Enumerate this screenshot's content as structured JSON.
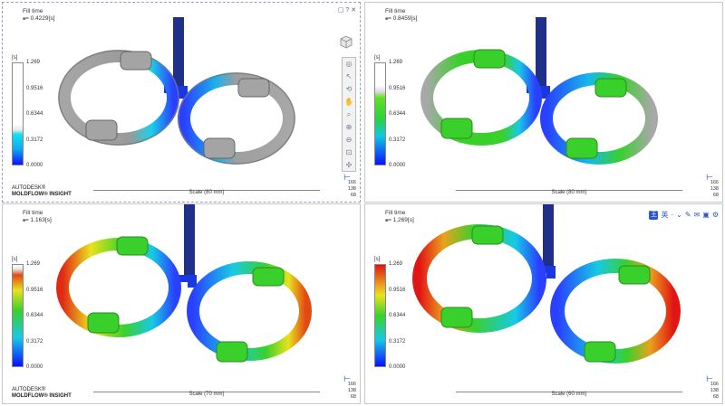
{
  "panels": [
    {
      "title": "Fill time",
      "value": "= 0.4229[s]",
      "unit": "[s]",
      "scale": "Scale (80 mm)"
    },
    {
      "title": "Fill time",
      "value": "= 0.8459[s]",
      "unit": "[s]",
      "scale": "Scale (80 mm)"
    },
    {
      "title": "Fill time",
      "value": "= 1.163[s]",
      "unit": "[s]",
      "scale": "Scale (70 mm)"
    },
    {
      "title": "Fill time",
      "value": "= 1.269[s]",
      "unit": "[s]",
      "scale": "Scale (60 mm)"
    }
  ],
  "legend": [
    "1.269",
    "0.9516",
    "0.6344",
    "0.3172",
    "0.0000"
  ],
  "brand": {
    "line1": "AUTODESK®",
    "line2": "MOLDFLOW® INSIGHT"
  },
  "triad": {
    "a": "166",
    "b": "138",
    "c": "68"
  },
  "toolbar_icons": [
    "window-icon",
    "question-icon",
    "close-icon"
  ],
  "vertical_tools": [
    "rotate-icon",
    "select-icon",
    "rotate-3d-icon",
    "pan-icon",
    "zoom-icon",
    "zoom-in-icon",
    "zoom-out-icon",
    "fit-icon",
    "move-icon"
  ],
  "translate_toolbar": {
    "zh": "王",
    "items": [
      "英",
      "·",
      "⌄",
      "✎",
      "✉",
      "▣",
      "⚙"
    ]
  },
  "colors": {
    "gray": "#9e9e9e",
    "blue": "#1a3aff",
    "cyan": "#16c9e8",
    "green": "#39d12a",
    "yellow": "#e9e21d",
    "red": "#e21515"
  }
}
